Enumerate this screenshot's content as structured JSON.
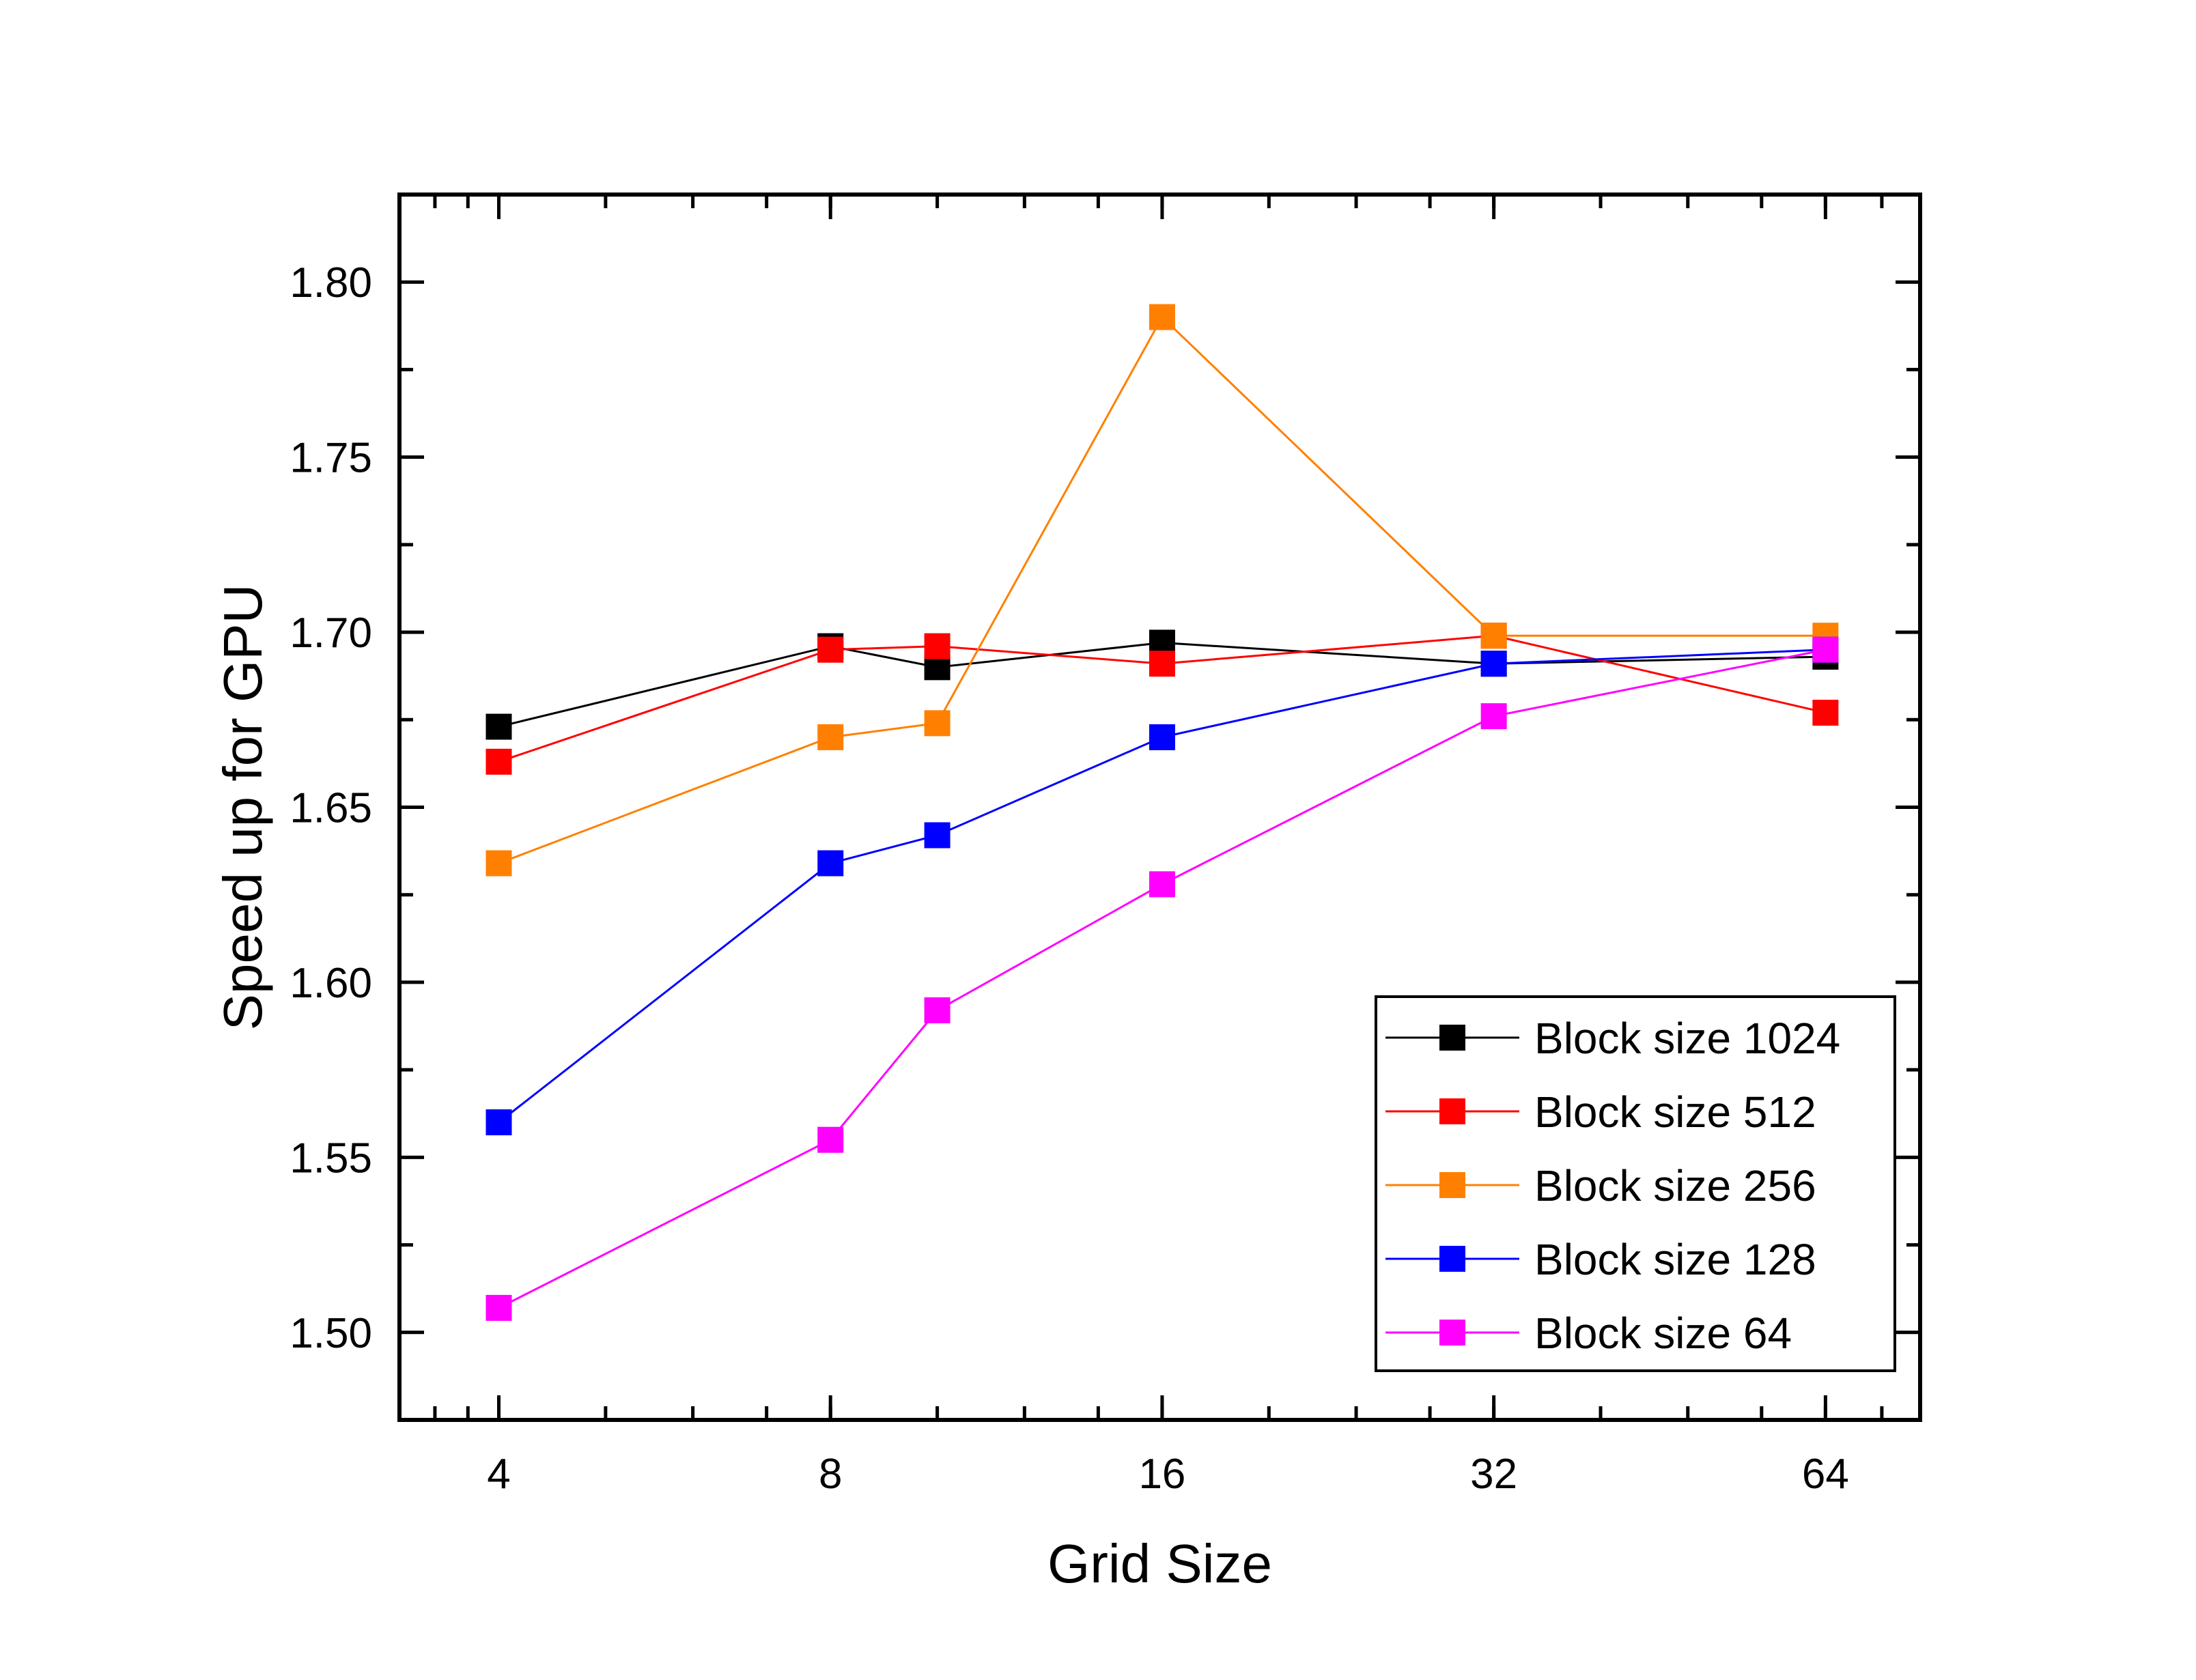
{
  "chart_data": {
    "type": "line",
    "title": "",
    "xlabel": "Grid Size",
    "ylabel": "Speed up for GPU",
    "x_scale": "log2",
    "x": [
      4,
      8,
      10,
      16,
      32,
      64
    ],
    "x_ticks": [
      4,
      8,
      16,
      32,
      64
    ],
    "x_tick_labels": [
      "4",
      "8",
      "16",
      "32",
      "64"
    ],
    "xlim": [
      3.25,
      78
    ],
    "ylim": [
      1.475,
      1.825
    ],
    "y_ticks": [
      1.5,
      1.55,
      1.6,
      1.65,
      1.7,
      1.75,
      1.8
    ],
    "y_tick_labels": [
      "1.50",
      "1.55",
      "1.60",
      "1.65",
      "1.70",
      "1.75",
      "1.80"
    ],
    "grid": false,
    "legend_position": "bottom-right",
    "series": [
      {
        "name": "Block size 1024",
        "color": "#000000",
        "marker": "square",
        "values": [
          1.673,
          1.696,
          1.69,
          1.697,
          1.691,
          1.693
        ]
      },
      {
        "name": "Block size 512",
        "color": "#ff0000",
        "marker": "square",
        "values": [
          1.663,
          1.695,
          1.696,
          1.691,
          1.699,
          1.677
        ]
      },
      {
        "name": "Block size 256",
        "color": "#ff8000",
        "marker": "square",
        "values": [
          1.634,
          1.67,
          1.674,
          1.79,
          1.699,
          1.699
        ]
      },
      {
        "name": "Block size 128",
        "color": "#0000ff",
        "marker": "square",
        "values": [
          1.56,
          1.634,
          1.642,
          1.67,
          1.691,
          1.695
        ]
      },
      {
        "name": "Block size 64",
        "color": "#ff00ff",
        "marker": "square",
        "values": [
          1.507,
          1.555,
          1.592,
          1.628,
          1.676,
          1.695
        ]
      }
    ]
  }
}
